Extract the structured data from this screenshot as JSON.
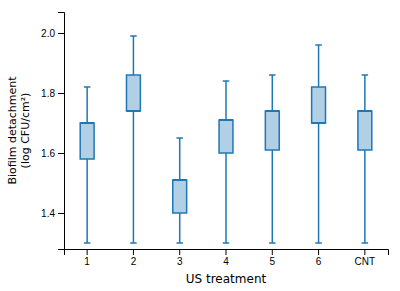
{
  "chart_data": {
    "type": "box",
    "categories": [
      "1",
      "2",
      "3",
      "4",
      "5",
      "6",
      "CNT"
    ],
    "upper_whisker": [
      1.82,
      1.99,
      1.65,
      1.84,
      1.86,
      1.96,
      1.86
    ],
    "lower_whisker": [
      1.3,
      1.3,
      1.3,
      1.3,
      1.3,
      1.3,
      1.3
    ],
    "q3": [
      1.7,
      1.86,
      1.51,
      1.71,
      1.74,
      1.82,
      1.74
    ],
    "q1": [
      1.58,
      1.74,
      1.4,
      1.6,
      1.61,
      1.7,
      1.61
    ],
    "median": [
      1.7,
      1.74,
      1.51,
      1.71,
      1.74,
      1.7,
      1.74
    ],
    "xlabel": "US treatment",
    "ylabel": "Biofilm detachment\n(log CFU/cm²)",
    "ylim": [
      1.28,
      2.07
    ],
    "yticks": [
      1.4,
      1.6,
      1.8,
      {
        "value": 2.0,
        "label": "2.0"
      }
    ],
    "grid": false
  }
}
